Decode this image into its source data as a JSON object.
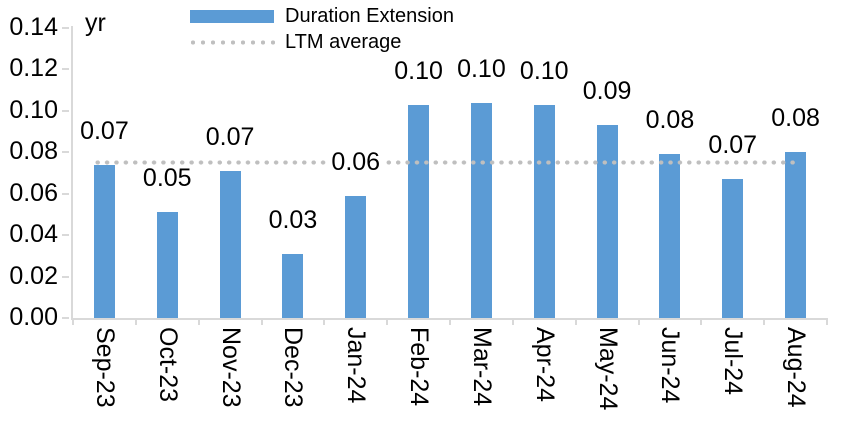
{
  "chart_data": {
    "type": "bar",
    "title": "",
    "unit_label": "yr",
    "categories": [
      "Sep-23",
      "Oct-23",
      "Nov-23",
      "Dec-23",
      "Jan-24",
      "Feb-24",
      "Mar-24",
      "Apr-24",
      "May-24",
      "Jun-24",
      "Jul-24",
      "Aug-24"
    ],
    "series": [
      {
        "name": "Duration Extension",
        "color": "#5B9BD5",
        "values": [
          0.074,
          0.051,
          0.071,
          0.031,
          0.059,
          0.103,
          0.104,
          0.103,
          0.093,
          0.079,
          0.067,
          0.08
        ],
        "data_labels": [
          "0.07",
          "0.05",
          "0.07",
          "0.03",
          "0.06",
          "0.10",
          "0.10",
          "0.10",
          "0.09",
          "0.08",
          "0.07",
          "0.08"
        ]
      }
    ],
    "reference_line": {
      "name": "LTM average",
      "value": 0.075,
      "style": "dotted",
      "color": "#BFBFBF"
    },
    "ylim": [
      0,
      0.14
    ],
    "ytick_labels": [
      "0.00",
      "0.02",
      "0.04",
      "0.06",
      "0.08",
      "0.10",
      "0.12",
      "0.14"
    ],
    "grid": "off",
    "legend_position": "top"
  },
  "colors": {
    "bar": "#5B9BD5",
    "dotted_line": "#BFBFBF",
    "axis": "#D9D9D9",
    "text": "#000000",
    "background": "#FFFFFF"
  }
}
